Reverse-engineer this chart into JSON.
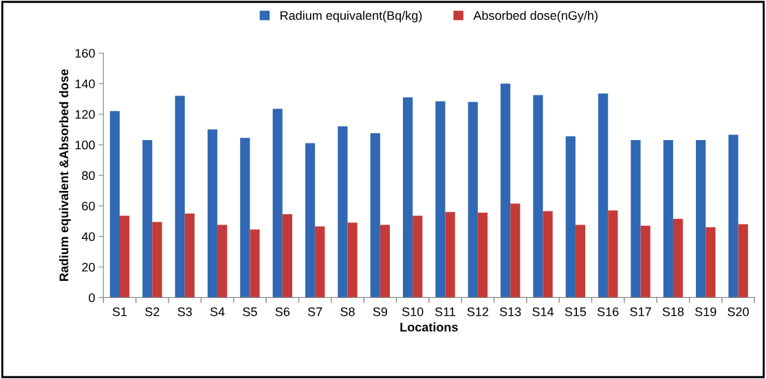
{
  "chart_data": {
    "type": "bar",
    "xlabel": "Locations",
    "ylabel": "Radium equivalent &Absorbed dose",
    "categories": [
      "S1",
      "S2",
      "S3",
      "S4",
      "S5",
      "S6",
      "S7",
      "S8",
      "S9",
      "S10",
      "S11",
      "S12",
      "S13",
      "S14",
      "S15",
      "S16",
      "S17",
      "S18",
      "S19",
      "S20"
    ],
    "series": [
      {
        "name": "Radium equivalent(Bq/kg)",
        "color": "#3068b4",
        "values": [
          122,
          103,
          132,
          110,
          104.5,
          123.5,
          101,
          112,
          107.5,
          131,
          128.5,
          128,
          140,
          132.5,
          105.5,
          133.5,
          103,
          103,
          103,
          106.5
        ]
      },
      {
        "name": "Absorbed dose(nGy/h)",
        "color": "#c43a38",
        "values": [
          53.5,
          49.5,
          55,
          47.5,
          44.5,
          54.5,
          46.5,
          49,
          47.5,
          53.5,
          56,
          55.5,
          61.5,
          56.5,
          47.5,
          57,
          47,
          51.5,
          46,
          48
        ]
      }
    ],
    "ylim": [
      0,
      160
    ],
    "yticks": [
      0,
      20,
      40,
      60,
      80,
      100,
      120,
      140,
      160
    ],
    "grid": false,
    "legend": "top"
  }
}
